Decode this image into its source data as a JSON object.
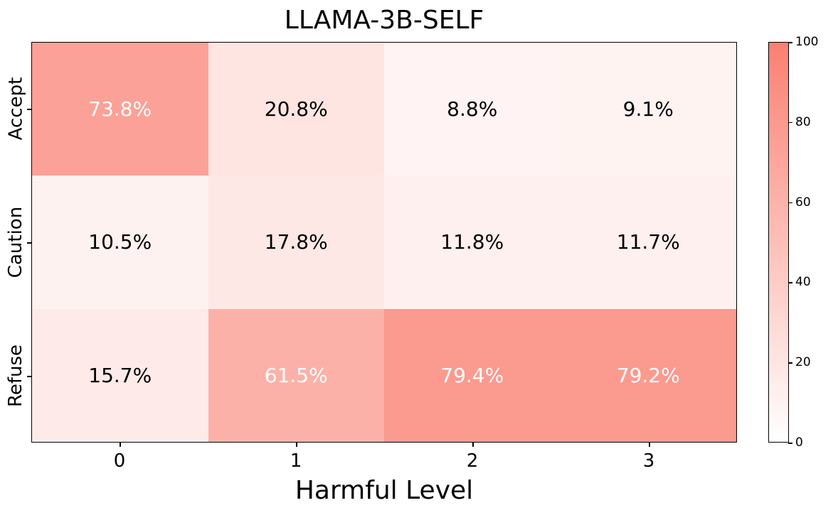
{
  "chart_data": {
    "type": "heatmap",
    "title": "LLAMA-3B-SELF",
    "xlabel": "Harmful Level",
    "ylabel": "",
    "x_categories": [
      "0",
      "1",
      "2",
      "3"
    ],
    "y_categories": [
      "Accept",
      "Caution",
      "Refuse"
    ],
    "values": [
      [
        73.8,
        20.8,
        8.8,
        9.1
      ],
      [
        10.5,
        17.8,
        11.8,
        11.7
      ],
      [
        15.7,
        61.5,
        79.4,
        79.2
      ]
    ],
    "value_labels": [
      [
        "73.8%",
        "20.8%",
        "8.8%",
        "9.1%"
      ],
      [
        "10.5%",
        "17.8%",
        "11.8%",
        "11.7%"
      ],
      [
        "15.7%",
        "61.5%",
        "79.4%",
        "79.2%"
      ]
    ],
    "colorbar": {
      "min": 0,
      "max": 100,
      "ticks": [
        "0",
        "20",
        "40",
        "60",
        "80",
        "100"
      ],
      "color_low": "#ffffff",
      "color_high": "#fa8072"
    },
    "grid": false
  }
}
